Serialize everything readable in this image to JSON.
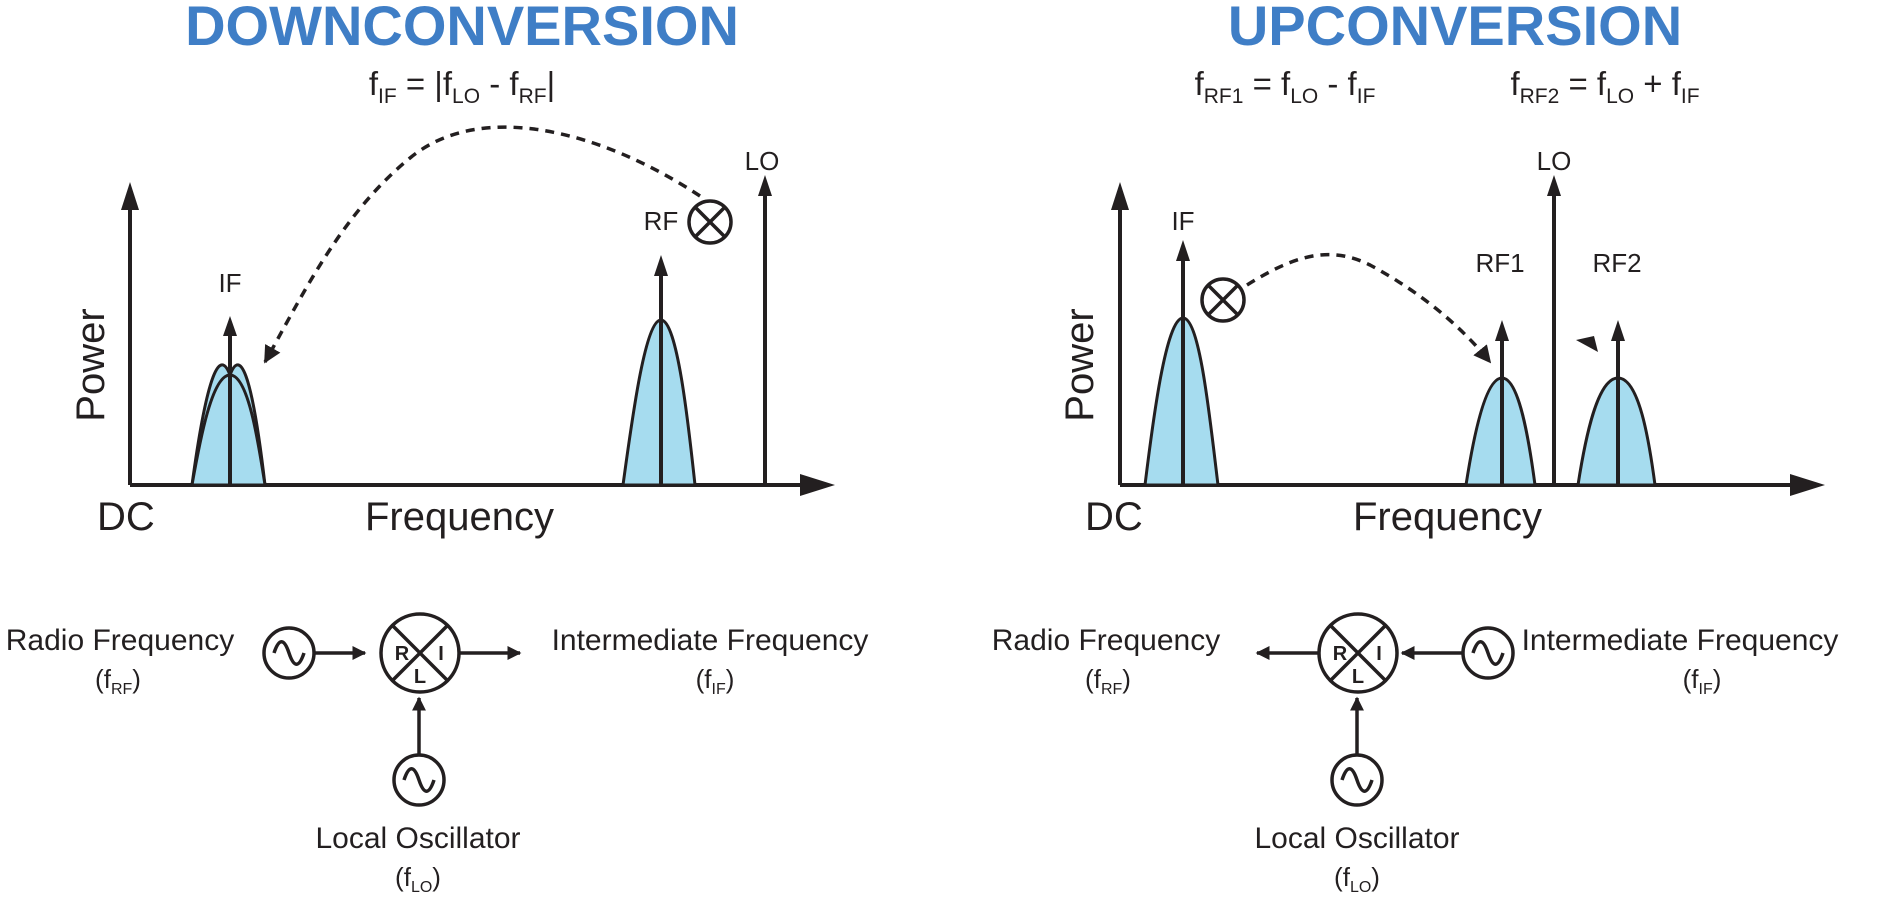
{
  "downconversion": {
    "title": "DOWNCONVERSION",
    "formula": {
      "lhs_base": "f",
      "lhs_sub": "IF",
      "eq": " = |f",
      "a_sub": "LO",
      "minus": " - f",
      "b_sub": "RF",
      "end": "|"
    },
    "spectrum": {
      "y_axis_label": "Power",
      "x_axis_label": "Frequency",
      "origin_label": "DC",
      "signals": {
        "if": "IF",
        "rf": "RF",
        "lo": "LO"
      }
    },
    "block": {
      "input_label": "Radio Frequency",
      "input_sub_base": "(f",
      "input_sub": "RF",
      "input_sub_end": ")",
      "output_label": "Intermediate Frequency",
      "output_sub_base": "(f",
      "output_sub": "IF",
      "output_sub_end": ")",
      "lo_label": "Local Oscillator",
      "lo_sub_base": "(f",
      "lo_sub": "LO",
      "lo_sub_end": ")",
      "mixer_ports": {
        "r": "R",
        "i": "I",
        "l": "L"
      }
    }
  },
  "upconversion": {
    "title": "UPCONVERSION",
    "formula1": {
      "lhs_base": "f",
      "lhs_sub": "RF1",
      "eq": " = f",
      "a_sub": "LO",
      "op": " - f",
      "b_sub": "IF"
    },
    "formula2": {
      "lhs_base": "f",
      "lhs_sub": "RF2",
      "eq": " = f",
      "a_sub": "LO",
      "op": " + f",
      "b_sub": "IF"
    },
    "spectrum": {
      "y_axis_label": "Power",
      "x_axis_label": "Frequency",
      "origin_label": "DC",
      "signals": {
        "if": "IF",
        "rf1": "RF1",
        "rf2": "RF2",
        "lo": "LO"
      }
    },
    "block": {
      "output_label": "Radio Frequency",
      "output_sub_base": "(f",
      "output_sub": "RF",
      "output_sub_end": ")",
      "input_label": "Intermediate Frequency",
      "input_sub_base": "(f",
      "input_sub": "IF",
      "input_sub_end": ")",
      "lo_label": "Local Oscillator",
      "lo_sub_base": "(f",
      "lo_sub": "LO",
      "lo_sub_end": ")",
      "mixer_ports": {
        "r": "R",
        "i": "I",
        "l": "L"
      }
    }
  }
}
